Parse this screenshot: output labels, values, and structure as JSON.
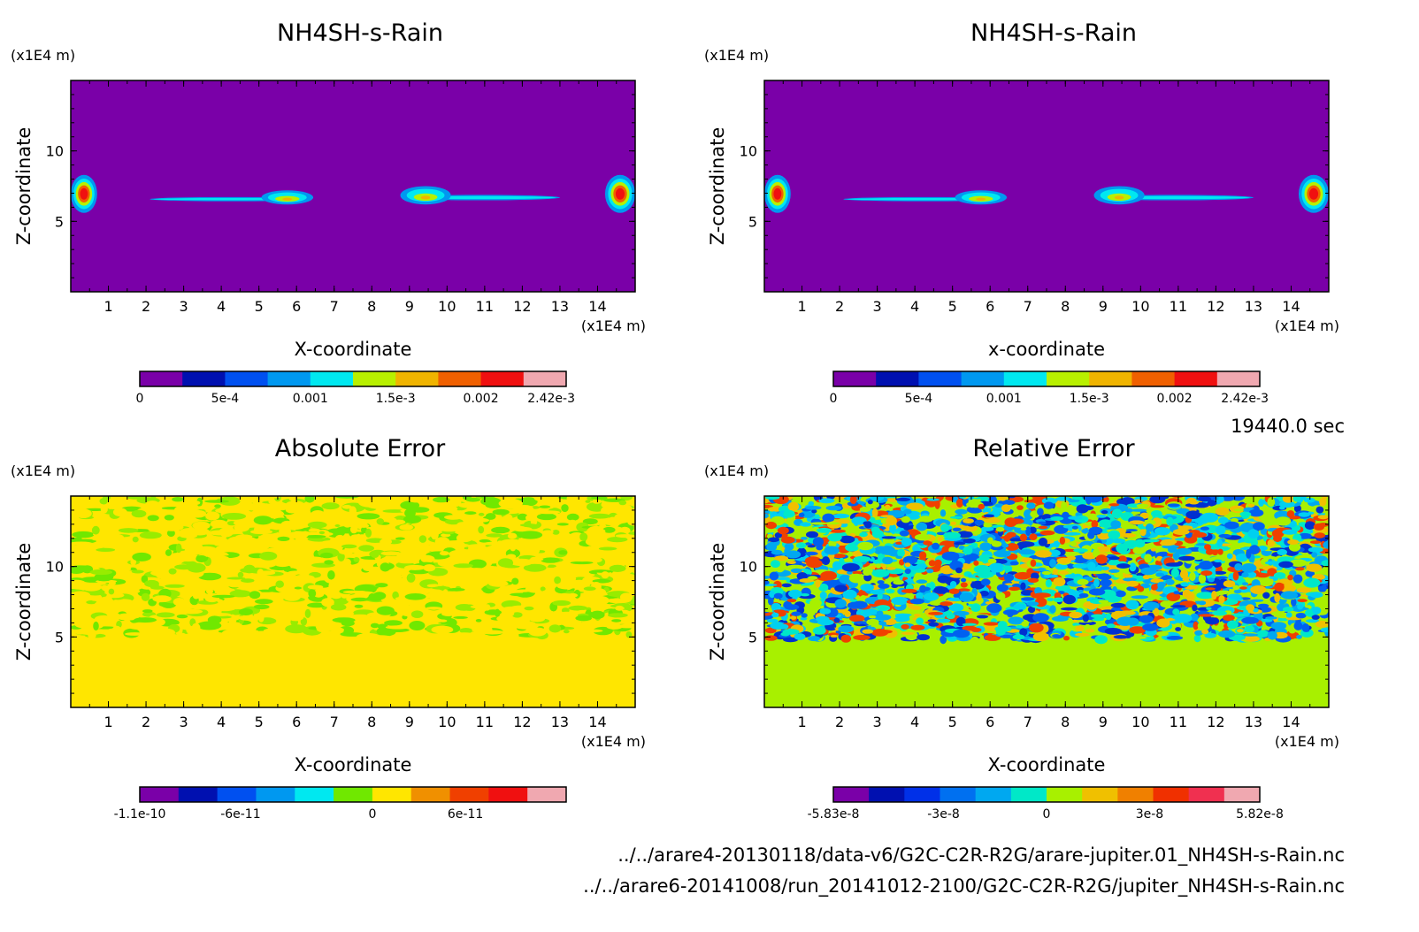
{
  "time_label": "19440.0 sec",
  "file_paths": [
    "../../arare4-20130118/data-v6/G2C-C2R-R2G/arare-jupiter.01_NH4SH-s-Rain.nc",
    "../../arare6-20141008/run_20141012-2100/G2C-C2R-R2G/jupiter_NH4SH-s-Rain.nc"
  ],
  "chart_data": [
    {
      "type": "heatmap",
      "title": "NH4SH-s-Rain",
      "xlabel": "X-coordinate",
      "ylabel": "Z-coordinate",
      "x_unit": "(x1E4 m)",
      "y_unit": "(x1E4 m)",
      "xlim": [
        0,
        15
      ],
      "ylim": [
        0,
        15
      ],
      "xticks": [
        "1",
        "2",
        "3",
        "4",
        "5",
        "6",
        "7",
        "8",
        "9",
        "10",
        "11",
        "12",
        "13",
        "14"
      ],
      "yticks": [
        "5",
        "10"
      ],
      "background": "#7a00a8",
      "colorbar": {
        "colors": [
          "#7a00a8",
          "#0010b0",
          "#0050f0",
          "#0098f0",
          "#00e8f0",
          "#b8f000",
          "#f0b400",
          "#f06000",
          "#f01010",
          "#f0a8b0"
        ],
        "labels": [
          "0",
          "5e-4",
          "0.001",
          "1.5e-3",
          "0.002",
          "2.42e-3"
        ],
        "label_positions": [
          0,
          2,
          4,
          6,
          8,
          9.65
        ]
      },
      "features": [
        {
          "kind": "blob",
          "x": [
            0,
            0.7
          ],
          "z": [
            5.6,
            8.3
          ]
        },
        {
          "kind": "filament",
          "x": [
            2.1,
            6.4
          ],
          "z": [
            6.2,
            7.2
          ]
        },
        {
          "kind": "filament",
          "x": [
            8.8,
            13.0
          ],
          "z": [
            6.2,
            7.5
          ]
        },
        {
          "kind": "blob",
          "x": [
            14.2,
            15
          ],
          "z": [
            5.6,
            8.3
          ]
        }
      ]
    },
    {
      "type": "heatmap",
      "title": "NH4SH-s-Rain",
      "xlabel": "x-coordinate",
      "ylabel": "Z-coordinate",
      "x_unit": "(x1E4 m)",
      "y_unit": "(x1E4 m)",
      "xlim": [
        0,
        15
      ],
      "ylim": [
        0,
        15
      ],
      "xticks": [
        "1",
        "2",
        "3",
        "4",
        "5",
        "6",
        "7",
        "8",
        "9",
        "10",
        "11",
        "12",
        "13",
        "14"
      ],
      "yticks": [
        "5",
        "10"
      ],
      "background": "#7a00a8",
      "colorbar": {
        "colors": [
          "#7a00a8",
          "#0010b0",
          "#0050f0",
          "#0098f0",
          "#00e8f0",
          "#b8f000",
          "#f0b400",
          "#f06000",
          "#f01010",
          "#f0a8b0"
        ],
        "labels": [
          "0",
          "5e-4",
          "0.001",
          "1.5e-3",
          "0.002",
          "2.42e-3"
        ],
        "label_positions": [
          0,
          2,
          4,
          6,
          8,
          9.65
        ]
      },
      "features": [
        {
          "kind": "blob",
          "x": [
            0,
            0.7
          ],
          "z": [
            5.6,
            8.3
          ]
        },
        {
          "kind": "filament",
          "x": [
            2.1,
            6.4
          ],
          "z": [
            6.2,
            7.2
          ]
        },
        {
          "kind": "filament",
          "x": [
            8.8,
            13.0
          ],
          "z": [
            6.2,
            7.5
          ]
        },
        {
          "kind": "blob",
          "x": [
            14.2,
            15
          ],
          "z": [
            5.6,
            8.3
          ]
        }
      ]
    },
    {
      "type": "heatmap",
      "title": "Absolute Error",
      "xlabel": "X-coordinate",
      "ylabel": "Z-coordinate",
      "x_unit": "(x1E4 m)",
      "y_unit": "(x1E4 m)",
      "xlim": [
        0,
        15
      ],
      "ylim": [
        0,
        15
      ],
      "xticks": [
        "1",
        "2",
        "3",
        "4",
        "5",
        "6",
        "7",
        "8",
        "9",
        "10",
        "11",
        "12",
        "13",
        "14"
      ],
      "yticks": [
        "5",
        "10"
      ],
      "background": "#ffe600",
      "noise_colors": [
        "#ffe600",
        "#70e800",
        "#ffe600",
        "#98ec00",
        "#ffe600"
      ],
      "noise_zmin": 5.5,
      "colorbar": {
        "colors": [
          "#7a00a8",
          "#0010b0",
          "#0050f0",
          "#0098f0",
          "#00e8f0",
          "#70e800",
          "#ffe600",
          "#f09000",
          "#f04000",
          "#f01010",
          "#f0a8b0"
        ],
        "labels": [
          "-1.1e-10",
          "-6e-11",
          "0",
          "6e-11"
        ],
        "label_positions": [
          0,
          2.6,
          6,
          8.4
        ]
      }
    },
    {
      "type": "heatmap",
      "title": "Relative Error",
      "xlabel": "X-coordinate",
      "ylabel": "Z-coordinate",
      "x_unit": "(x1E4 m)",
      "y_unit": "(x1E4 m)",
      "xlim": [
        0,
        15
      ],
      "ylim": [
        0,
        15
      ],
      "xticks": [
        "1",
        "2",
        "3",
        "4",
        "5",
        "6",
        "7",
        "8",
        "9",
        "10",
        "11",
        "12",
        "13",
        "14"
      ],
      "yticks": [
        "5",
        "10"
      ],
      "background": "#a8f000",
      "noise_colors": [
        "#0060f0",
        "#00a8f0",
        "#00e8c8",
        "#a8f000",
        "#f0c000",
        "#f04000",
        "#0030d0",
        "#00d0f0"
      ],
      "noise_zmin": 5.3,
      "colorbar": {
        "colors": [
          "#7a00a8",
          "#0010b0",
          "#0030e8",
          "#0070f0",
          "#00a8f0",
          "#00e8c8",
          "#a8f000",
          "#f0c000",
          "#f08000",
          "#f03000",
          "#f03050",
          "#f0a8b0"
        ],
        "labels": [
          "-5.83e-8",
          "-3e-8",
          "0",
          "3e-8",
          "5.82e-8"
        ],
        "label_positions": [
          0,
          3.1,
          6,
          8.9,
          12
        ]
      }
    }
  ]
}
